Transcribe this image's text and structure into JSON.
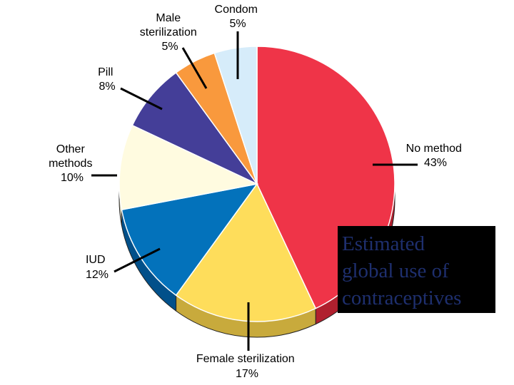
{
  "chart_data": {
    "type": "pie",
    "title": "Estimated global use of contraceptives",
    "slices": [
      {
        "label": "No method",
        "value": 43,
        "value_label": "43%",
        "color": "#ef3448",
        "side_color": "#b0202e"
      },
      {
        "label": "Female sterilization",
        "value": 17,
        "value_label": "17%",
        "color": "#fedd5b",
        "side_color": "#c8aa3c"
      },
      {
        "label": "IUD",
        "value": 12,
        "value_label": "12%",
        "color": "#0372bb",
        "side_color": "#02508a"
      },
      {
        "label": "Other methods",
        "value": 10,
        "value_label": "10%",
        "color": "#fffbe0",
        "side_color": "#d6d1b4"
      },
      {
        "label": "Pill",
        "value": 8,
        "value_label": "8%",
        "color": "#443e98",
        "side_color": "#2e2a6b"
      },
      {
        "label": "Male sterilization",
        "value": 5,
        "value_label": "5%",
        "color": "#f9993d",
        "side_color": "#c06f22"
      },
      {
        "label": "Condom",
        "value": 5,
        "value_label": "5%",
        "color": "#d6ecfa",
        "side_color": "#a9c3d4"
      }
    ]
  },
  "title_lines": "Estimated\nglobal use of\ncontraceptives",
  "title_color": "#1e2f6e"
}
